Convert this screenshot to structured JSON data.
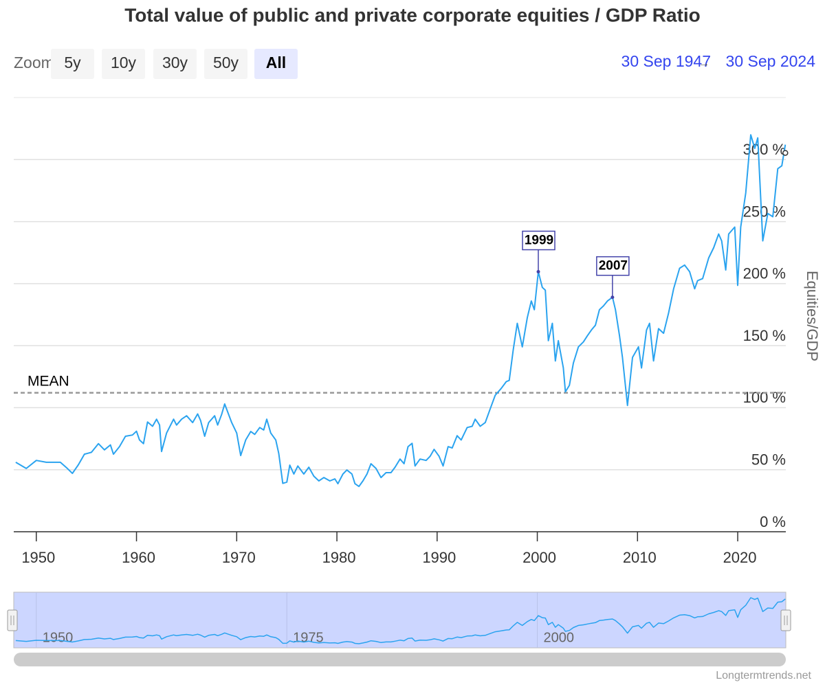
{
  "range_selector": {
    "label": "Zoom",
    "buttons": [
      "5y",
      "10y",
      "30y",
      "50y",
      "All"
    ],
    "selected": 4
  },
  "date_range": {
    "from": "30 Sep 1947",
    "separator": "→",
    "to": "30 Sep 2024"
  },
  "credit": "Longtermtrends.net",
  "chart_data": {
    "type": "line",
    "title": "Total value of public and private corporate equities / GDP Ratio",
    "ylabel": "Equities/GDP",
    "color": "#2aa3ef",
    "x": [
      1947.95,
      1949,
      1950,
      1951,
      1952.4,
      1953.1,
      1953.6,
      1954.2,
      1954.8,
      1955.5,
      1956.2,
      1956.8,
      1957.4,
      1957.7,
      1958.3,
      1958.9,
      1959.6,
      1960,
      1960.3,
      1960.7,
      1961.1,
      1961.6,
      1962,
      1962.3,
      1962.5,
      1963,
      1963.7,
      1964,
      1964.5,
      1965,
      1965.6,
      1966.1,
      1966.4,
      1966.8,
      1967.2,
      1967.8,
      1968.1,
      1968.5,
      1968.8,
      1969.5,
      1970,
      1970.4,
      1970.9,
      1971.4,
      1971.8,
      1972.3,
      1972.7,
      1973,
      1973.4,
      1973.9,
      1974.2,
      1974.6,
      1975,
      1975.3,
      1975.7,
      1976.1,
      1976.7,
      1977.2,
      1977.7,
      1978.2,
      1978.7,
      1979.3,
      1979.8,
      1980.1,
      1980.6,
      1981,
      1981.5,
      1981.8,
      1982.2,
      1982.6,
      1983,
      1983.4,
      1983.9,
      1984.4,
      1984.9,
      1985.4,
      1985.8,
      1986.3,
      1986.7,
      1987.1,
      1987.5,
      1987.8,
      1988.3,
      1988.9,
      1989.3,
      1989.7,
      1990.2,
      1990.6,
      1991.1,
      1991.5,
      1992,
      1992.4,
      1993,
      1993.5,
      1993.8,
      1994.3,
      1994.8,
      1995.3,
      1995.8,
      1996.4,
      1996.9,
      1997.2,
      1997.6,
      1998,
      1998.5,
      1999,
      1999.4,
      1999.7,
      2000.1,
      2000.5,
      2000.8,
      2001.1,
      2001.5,
      2001.8,
      2002.1,
      2002.6,
      2002.8,
      2003.2,
      2003.6,
      2004.1,
      2004.6,
      2005,
      2005.4,
      2005.8,
      2006.2,
      2006.6,
      2007,
      2007.5,
      2007.8,
      2008.2,
      2008.5,
      2009,
      2009.5,
      2010.1,
      2010.4,
      2010.9,
      2011.2,
      2011.6,
      2012.1,
      2012.6,
      2013.1,
      2013.6,
      2014.2,
      2014.7,
      2015.2,
      2015.7,
      2016,
      2016.5,
      2017.1,
      2017.6,
      2018.1,
      2018.4,
      2018.8,
      2019.1,
      2019.7,
      2020,
      2020.3,
      2020.8,
      2021.3,
      2021.7,
      2022,
      2022.5,
      2023,
      2023.5,
      2024,
      2024.4,
      2024.75
    ],
    "values": [
      56,
      51,
      57.5,
      56,
      56,
      51,
      47,
      54,
      62.5,
      64,
      71,
      66,
      70,
      62.5,
      68.6,
      77,
      78,
      81,
      74,
      71,
      88.5,
      85,
      90.7,
      86,
      64.7,
      79.6,
      90.7,
      86,
      90.7,
      93.5,
      88,
      95,
      89.6,
      77,
      88,
      93.5,
      86,
      94.6,
      103,
      88,
      79.6,
      61.4,
      74,
      80.8,
      78.5,
      84,
      82,
      90.7,
      79.6,
      74,
      63,
      39,
      40,
      53.7,
      46.5,
      53,
      46.5,
      52,
      44.8,
      41,
      43.7,
      41,
      42.6,
      38.7,
      46.5,
      49.8,
      46.5,
      38.7,
      36.5,
      41,
      46.5,
      54.8,
      51,
      43.7,
      47.6,
      47.6,
      52,
      58.6,
      54.8,
      68.6,
      71.3,
      53,
      58.6,
      57.5,
      60.8,
      66.4,
      60.8,
      53,
      68.6,
      67.5,
      77.4,
      74,
      84,
      85,
      90.7,
      85,
      88,
      99,
      110,
      115.6,
      121,
      122,
      147,
      168,
      149,
      172.6,
      186,
      179,
      209.6,
      197,
      194.7,
      154,
      168,
      137.7,
      154,
      132,
      112.8,
      118,
      136,
      149,
      153,
      158,
      162.6,
      166.5,
      179,
      182,
      186,
      189,
      179,
      158,
      140.5,
      101.8,
      140.5,
      149,
      132,
      162.6,
      168,
      137.7,
      163.7,
      160,
      176.4,
      195.8,
      212.4,
      215,
      209.6,
      195.8,
      202.4,
      204,
      220.7,
      229,
      240,
      234.5,
      211,
      240,
      245.6,
      198.6,
      245.6,
      273,
      320,
      309,
      317.5,
      234.5,
      256.6,
      253.9,
      292.6,
      295,
      312
    ],
    "xlim": [
      1947.75,
      2024.8
    ],
    "xticks": [
      1950,
      1960,
      1970,
      1980,
      1990,
      2000,
      2010,
      2020
    ],
    "ylim": [
      0,
      350
    ],
    "yticks": [
      {
        "value": 0,
        "label": "0 %"
      },
      {
        "value": 50,
        "label": "50 %"
      },
      {
        "value": 100,
        "label": "100 %"
      },
      {
        "value": 150,
        "label": "150 %"
      },
      {
        "value": 200,
        "label": "200 %"
      },
      {
        "value": 250,
        "label": "250 %"
      },
      {
        "value": 300,
        "label": "300 %"
      }
    ],
    "grid": true,
    "mean": {
      "label": "MEAN",
      "value": 112
    },
    "annotations": [
      {
        "text": "1999",
        "x": 2000.1
      },
      {
        "text": "2007",
        "x": 2007.5
      }
    ],
    "navigator_xticks": [
      1950,
      1975,
      2000
    ]
  }
}
